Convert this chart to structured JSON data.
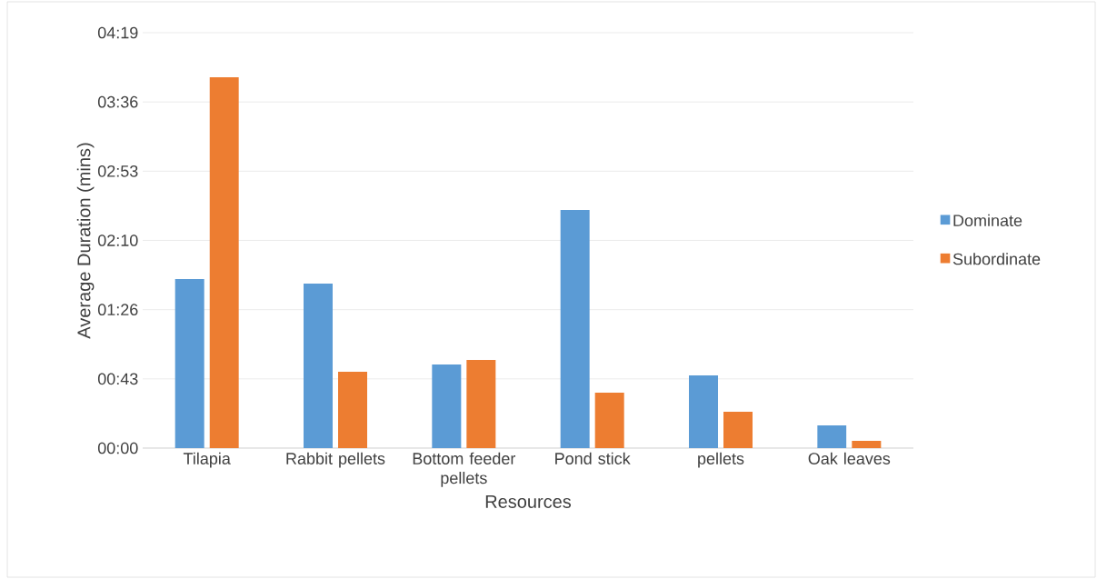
{
  "chart_data": {
    "type": "bar",
    "xlabel": "Resources",
    "ylabel": "Average Duration (mins)",
    "categories": [
      "Tilapia",
      "Rabbit pellets",
      "Bottom feeder pellets",
      "Pond stick",
      "pellets",
      "Oak leaves"
    ],
    "series": [
      {
        "name": "Dominate",
        "color": "#5b9bd5",
        "values": [
          105.5,
          102.7,
          52.2,
          148.6,
          45.4,
          14.2
        ]
      },
      {
        "name": "Subordinate",
        "color": "#ed7d31",
        "values": [
          231.4,
          47.6,
          55.0,
          34.6,
          22.7,
          4.5
        ]
      }
    ],
    "ylim": [
      0,
      259.2
    ],
    "yticks": [
      {
        "value": 0,
        "label": "00:00"
      },
      {
        "value": 43.2,
        "label": "00:43"
      },
      {
        "value": 86.4,
        "label": "01:26"
      },
      {
        "value": 129.6,
        "label": "02:10"
      },
      {
        "value": 172.8,
        "label": "02:53"
      },
      {
        "value": 216,
        "label": "03:36"
      },
      {
        "value": 259.2,
        "label": "04:19"
      }
    ],
    "grid": "y",
    "legend": "right"
  }
}
